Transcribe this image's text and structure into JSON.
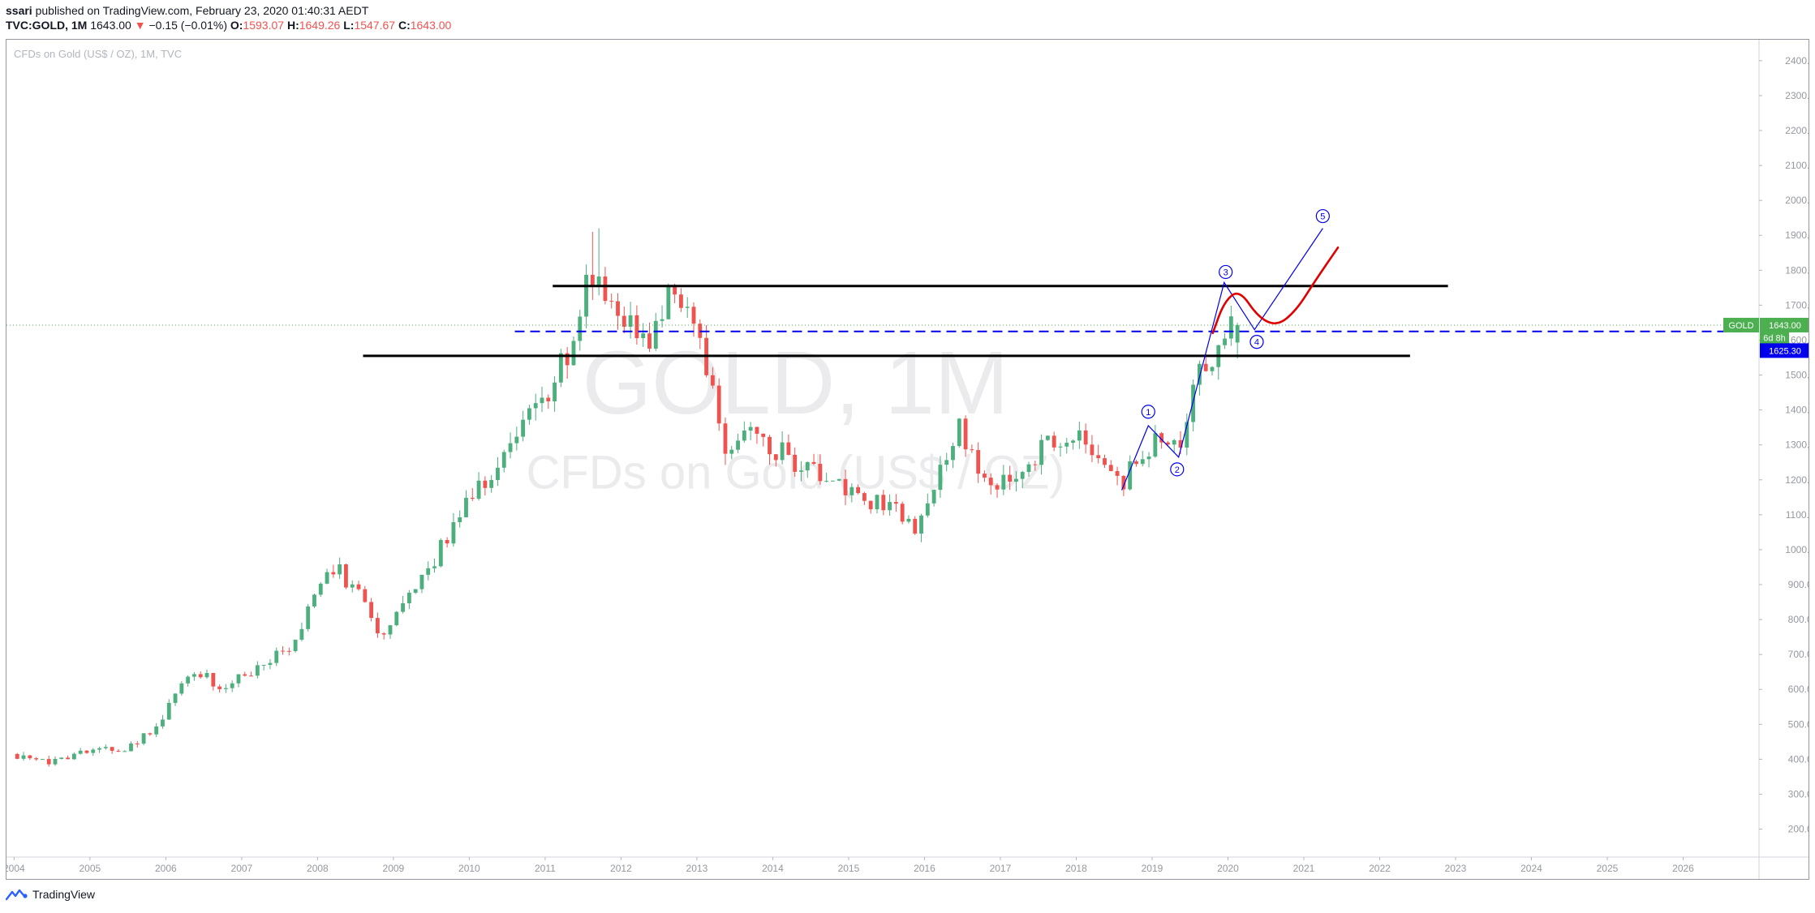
{
  "header": {
    "author": "ssari",
    "published_text": "published on TradingView.com, February 23, 2020 01:40:31 AEDT",
    "symbol": "TVC:GOLD, 1M",
    "last": "1643.00",
    "change_arrow": "▼",
    "change": "−0.15 (−0.01%)",
    "open_label": "O:",
    "open": "1593.07",
    "high_label": "H:",
    "high": "1649.26",
    "low_label": "L:",
    "low": "1547.67",
    "close_label": "C:",
    "close": "1643.00"
  },
  "chart_title": "CFDs on Gold (US$ / OZ), 1M, TVC",
  "footer": {
    "brand": "TradingView",
    "icon": "tradingview-logo-icon"
  },
  "colors": {
    "up": "#4caf7d",
    "down": "#ef5350",
    "grid_text": "#9598a1",
    "annotation_blue": "#0000ee",
    "annotation_red": "#e00000",
    "price_tag_green": "#4caf50",
    "price_tag_blue": "#0000ee"
  },
  "chart_data": {
    "type": "candlestick",
    "interval": "1M",
    "watermark": {
      "symbol": "GOLD, 1M",
      "description": "CFDs on Gold (US$ / OZ)"
    },
    "y_axis": {
      "range": [
        120,
        2460
      ],
      "ticks": [
        "200.00",
        "300.00",
        "400.00",
        "500.00",
        "600.00",
        "700.00",
        "800.00",
        "900.00",
        "1000.00",
        "1100.00",
        "1200.00",
        "1300.00",
        "1400.00",
        "1500.00",
        "1600.00",
        "1700.00",
        "1800.00",
        "1900.00",
        "2000.00",
        "2100.00",
        "2200.00",
        "2300.00",
        "2400.00"
      ]
    },
    "x_axis": {
      "range": [
        2003.9,
        2027.0
      ],
      "ticks": [
        "2004",
        "2005",
        "2006",
        "2007",
        "2008",
        "2009",
        "2010",
        "2011",
        "2012",
        "2013",
        "2014",
        "2015",
        "2016",
        "2017",
        "2018",
        "2019",
        "2020",
        "2021",
        "2022",
        "2023",
        "2024",
        "2025",
        "2026"
      ]
    },
    "anchors": [
      {
        "t": 2004.0,
        "p": 415
      },
      {
        "t": 2004.5,
        "p": 395
      },
      {
        "t": 2005.0,
        "p": 425
      },
      {
        "t": 2005.5,
        "p": 430
      },
      {
        "t": 2005.9,
        "p": 495
      },
      {
        "t": 2006.4,
        "p": 660
      },
      {
        "t": 2006.8,
        "p": 600
      },
      {
        "t": 2007.3,
        "p": 665
      },
      {
        "t": 2007.7,
        "p": 730
      },
      {
        "t": 2008.2,
        "p": 960
      },
      {
        "t": 2008.6,
        "p": 880
      },
      {
        "t": 2008.85,
        "p": 750
      },
      {
        "t": 2009.5,
        "p": 940
      },
      {
        "t": 2009.9,
        "p": 1100
      },
      {
        "t": 2010.4,
        "p": 1230
      },
      {
        "t": 2010.9,
        "p": 1400
      },
      {
        "t": 2011.35,
        "p": 1560
      },
      {
        "t": 2011.65,
        "p": 1810
      },
      {
        "t": 2012.0,
        "p": 1650
      },
      {
        "t": 2012.4,
        "p": 1600
      },
      {
        "t": 2012.75,
        "p": 1770
      },
      {
        "t": 2013.1,
        "p": 1600
      },
      {
        "t": 2013.45,
        "p": 1250
      },
      {
        "t": 2013.75,
        "p": 1330
      },
      {
        "t": 2014.1,
        "p": 1290
      },
      {
        "t": 2014.8,
        "p": 1190
      },
      {
        "t": 2015.5,
        "p": 1120
      },
      {
        "t": 2015.95,
        "p": 1070
      },
      {
        "t": 2016.5,
        "p": 1350
      },
      {
        "t": 2016.95,
        "p": 1160
      },
      {
        "t": 2017.6,
        "p": 1290
      },
      {
        "t": 2018.1,
        "p": 1345
      },
      {
        "t": 2018.65,
        "p": 1190
      },
      {
        "t": 2019.0,
        "p": 1300
      },
      {
        "t": 2019.4,
        "p": 1290
      },
      {
        "t": 2019.6,
        "p": 1500
      },
      {
        "t": 2019.8,
        "p": 1500
      },
      {
        "t": 2020.12,
        "p": 1643
      }
    ],
    "horizontal_levels": [
      {
        "price": 1755,
        "from": 2011.1,
        "to": 2022.9,
        "style": "solid",
        "color": "#000000"
      },
      {
        "price": 1555,
        "from": 2008.6,
        "to": 2022.4,
        "style": "solid",
        "color": "#000000"
      },
      {
        "price": 1625,
        "from": 2010.6,
        "to": 2027.0,
        "style": "dashed",
        "color": "#0000ee"
      }
    ],
    "current_price_line": {
      "price": 1643,
      "style": "dotted",
      "color": "#4caf50"
    },
    "wave_path": [
      {
        "t": 2018.6,
        "p": 1170
      },
      {
        "t": 2018.95,
        "p": 1355
      },
      {
        "t": 2019.35,
        "p": 1265
      },
      {
        "t": 2019.95,
        "p": 1765
      },
      {
        "t": 2020.35,
        "p": 1630
      },
      {
        "t": 2021.25,
        "p": 1920
      }
    ],
    "wave_labels": [
      {
        "label": "1",
        "t": 2018.95,
        "p": 1395
      },
      {
        "label": "2",
        "t": 2019.33,
        "p": 1230
      },
      {
        "label": "3",
        "t": 2019.97,
        "p": 1795
      },
      {
        "label": "4",
        "t": 2020.38,
        "p": 1595
      },
      {
        "label": "5",
        "t": 2021.25,
        "p": 1955
      }
    ],
    "projection_path": [
      {
        "t": 2019.8,
        "p": 1620
      },
      {
        "t": 2019.95,
        "p": 1710
      },
      {
        "t": 2020.15,
        "p": 1745
      },
      {
        "t": 2020.4,
        "p": 1665
      },
      {
        "t": 2020.65,
        "p": 1640
      },
      {
        "t": 2020.9,
        "p": 1685
      },
      {
        "t": 2021.15,
        "p": 1770
      },
      {
        "t": 2021.45,
        "p": 1865
      }
    ],
    "price_tags": [
      {
        "symbol": "GOLD",
        "value": "1643.00",
        "price": 1643,
        "color": "#4caf50"
      },
      {
        "value": "6d 8h",
        "price": 1607,
        "color": "#4caf50",
        "kind": "countdown"
      },
      {
        "value": "1625.30",
        "price": 1570,
        "color": "#0000ee"
      }
    ]
  }
}
